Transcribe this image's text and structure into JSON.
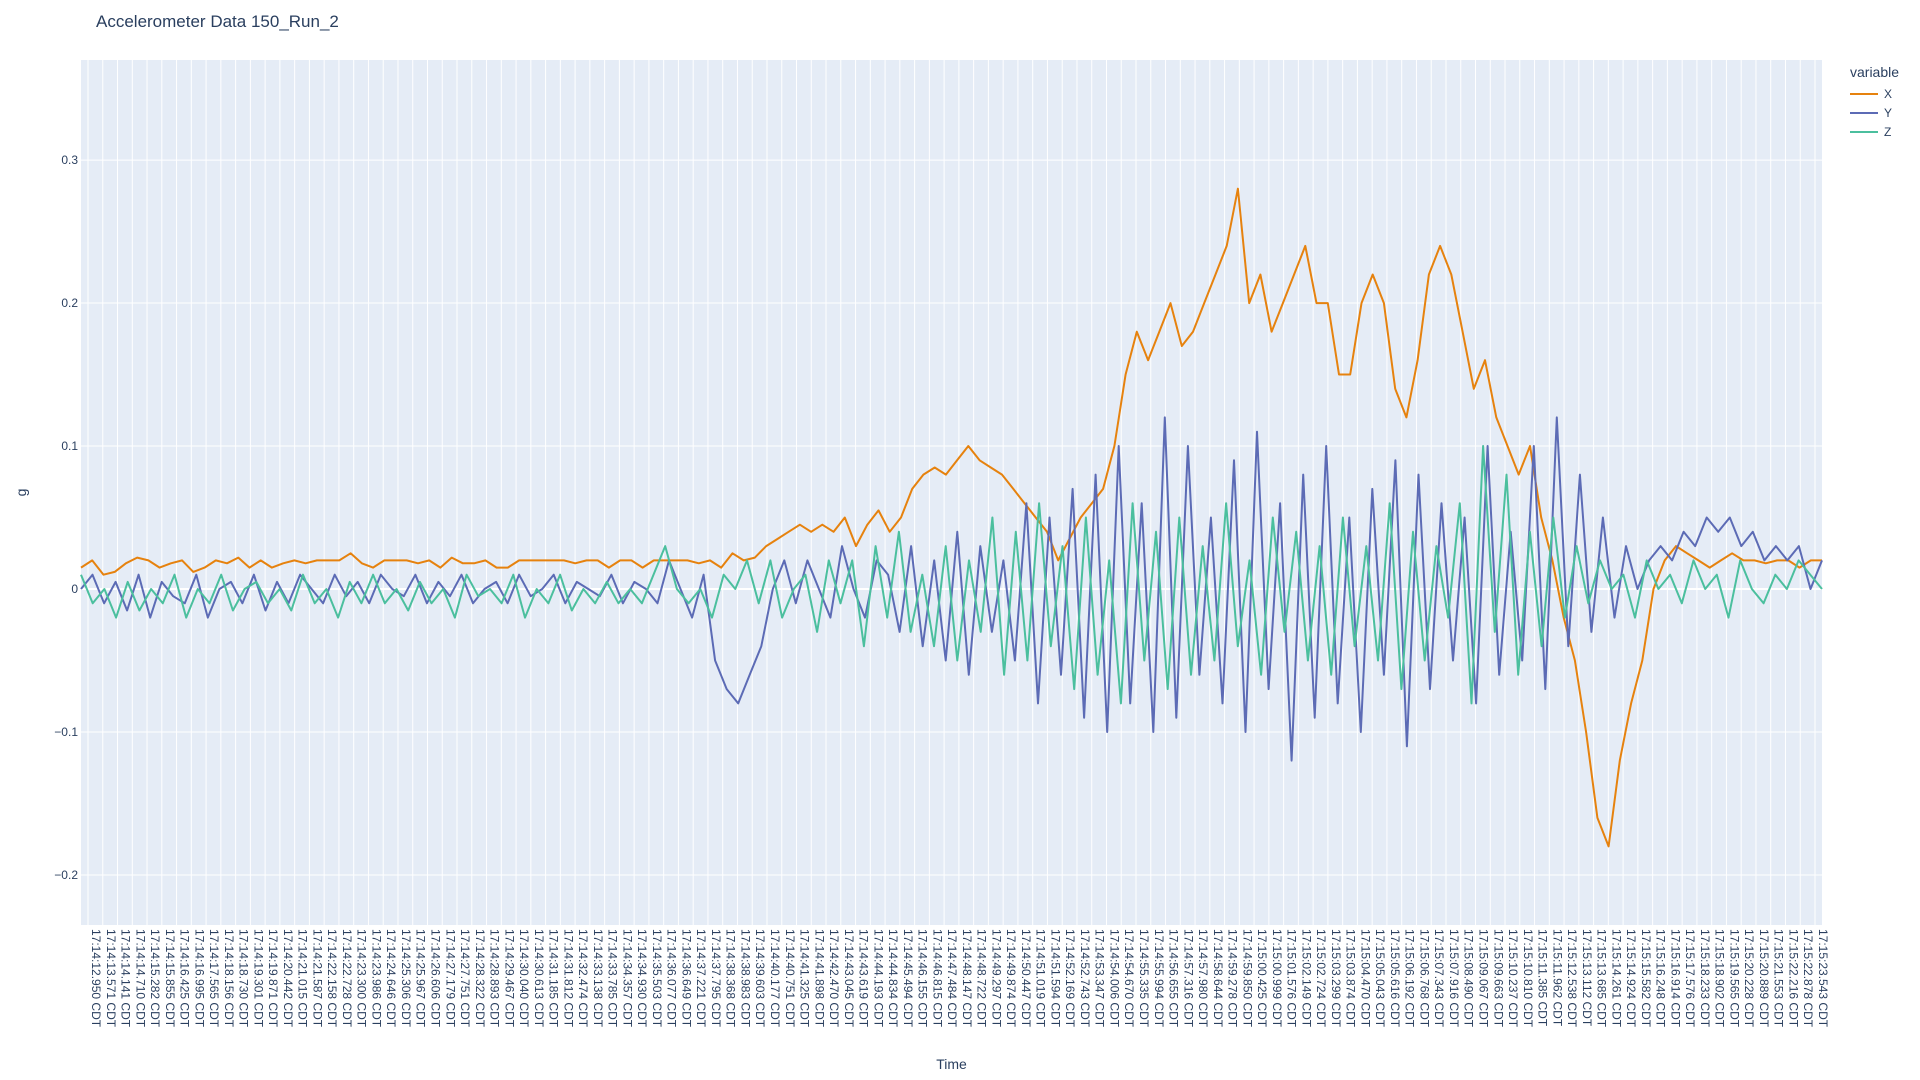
{
  "chart_data": {
    "type": "line",
    "title": "Accelerometer Data 150_Run_2",
    "xlabel": "Time",
    "ylabel": "g",
    "ylim": [
      -0.235,
      0.37
    ],
    "yticks": [
      -0.2,
      -0.1,
      0,
      0.1,
      0.2,
      0.3
    ],
    "ytick_labels": [
      "−0.2",
      "−0.1",
      "0",
      "0.1",
      "0.2",
      "0.3"
    ],
    "grid": true,
    "legend_title": "variable",
    "legend_position": "top-right",
    "x_tick_labels": [
      "17:14:12.950 CDT",
      "17:14:13.571 CDT",
      "17:14:14.141 CDT",
      "17:14:14.710 CDT",
      "17:14:15.282 CDT",
      "17:14:15.855 CDT",
      "17:14:16.425 CDT",
      "17:14:16.995 CDT",
      "17:14:17.565 CDT",
      "17:14:18.156 CDT",
      "17:14:18.730 CDT",
      "17:14:19.301 CDT",
      "17:14:19.871 CDT",
      "17:14:20.442 CDT",
      "17:14:21.015 CDT",
      "17:14:21.587 CDT",
      "17:14:22.158 CDT",
      "17:14:22.728 CDT",
      "17:14:23.300 CDT",
      "17:14:23.986 CDT",
      "17:14:24.646 CDT",
      "17:14:25.306 CDT",
      "17:14:25.967 CDT",
      "17:14:26.606 CDT",
      "17:14:27.179 CDT",
      "17:14:27.751 CDT",
      "17:14:28.322 CDT",
      "17:14:28.893 CDT",
      "17:14:29.467 CDT",
      "17:14:30.040 CDT",
      "17:14:30.613 CDT",
      "17:14:31.185 CDT",
      "17:14:31.812 CDT",
      "17:14:32.474 CDT",
      "17:14:33.138 CDT",
      "17:14:33.785 CDT",
      "17:14:34.357 CDT",
      "17:14:34.930 CDT",
      "17:14:35.503 CDT",
      "17:14:36.077 CDT",
      "17:14:36.649 CDT",
      "17:14:37.221 CDT",
      "17:14:37.795 CDT",
      "17:14:38.368 CDT",
      "17:14:38.983 CDT",
      "17:14:39.603 CDT",
      "17:14:40.177 CDT",
      "17:14:40.751 CDT",
      "17:14:41.325 CDT",
      "17:14:41.898 CDT",
      "17:14:42.470 CDT",
      "17:14:43.045 CDT",
      "17:14:43.619 CDT",
      "17:14:44.193 CDT",
      "17:14:44.834 CDT",
      "17:14:45.494 CDT",
      "17:14:46.155 CDT",
      "17:14:46.815 CDT",
      "17:14:47.484 CDT",
      "17:14:48.147 CDT",
      "17:14:48.722 CDT",
      "17:14:49.297 CDT",
      "17:14:49.874 CDT",
      "17:14:50.447 CDT",
      "17:14:51.019 CDT",
      "17:14:51.594 CDT",
      "17:14:52.169 CDT",
      "17:14:52.743 CDT",
      "17:14:53.347 CDT",
      "17:14:54.006 CDT",
      "17:14:54.670 CDT",
      "17:14:55.335 CDT",
      "17:14:55.994 CDT",
      "17:14:56.655 CDT",
      "17:14:57.316 CDT",
      "17:14:57.980 CDT",
      "17:14:58.644 CDT",
      "17:14:59.278 CDT",
      "17:14:59.850 CDT",
      "17:15:00.425 CDT",
      "17:15:00.999 CDT",
      "17:15:01.576 CDT",
      "17:15:02.149 CDT",
      "17:15:02.724 CDT",
      "17:15:03.299 CDT",
      "17:15:03.874 CDT",
      "17:15:04.470 CDT",
      "17:15:05.043 CDT",
      "17:15:05.616 CDT",
      "17:15:06.192 CDT",
      "17:15:06.768 CDT",
      "17:15:07.343 CDT",
      "17:15:07.916 CDT",
      "17:15:08.490 CDT",
      "17:15:09.067 CDT",
      "17:15:09.663 CDT",
      "17:15:10.237 CDT",
      "17:15:10.810 CDT",
      "17:15:11.385 CDT",
      "17:15:11.962 CDT",
      "17:15:12.538 CDT",
      "17:15:13.112 CDT",
      "17:15:13.685 CDT",
      "17:15:14.261 CDT",
      "17:15:14.924 CDT",
      "17:15:15.582 CDT",
      "17:15:16.248 CDT",
      "17:15:16.914 CDT",
      "17:15:17.576 CDT",
      "17:15:18.233 CDT",
      "17:15:18.902 CDT",
      "17:15:19.565 CDT",
      "17:15:20.228 CDT",
      "17:15:20.889 CDT",
      "17:15:21.553 CDT",
      "17:15:22.216 CDT",
      "17:15:22.878 CDT",
      "17:15:23.543 CDT"
    ],
    "series": [
      {
        "name": "X",
        "color": "#e6820e",
        "values": [
          0.015,
          0.02,
          0.01,
          0.012,
          0.018,
          0.022,
          0.02,
          0.015,
          0.018,
          0.02,
          0.012,
          0.015,
          0.02,
          0.018,
          0.022,
          0.015,
          0.02,
          0.015,
          0.018,
          0.02,
          0.018,
          0.02,
          0.02,
          0.02,
          0.025,
          0.018,
          0.015,
          0.02,
          0.02,
          0.02,
          0.018,
          0.02,
          0.015,
          0.022,
          0.018,
          0.018,
          0.02,
          0.015,
          0.015,
          0.02,
          0.02,
          0.02,
          0.02,
          0.02,
          0.018,
          0.02,
          0.02,
          0.015,
          0.02,
          0.02,
          0.015,
          0.02,
          0.02,
          0.02,
          0.02,
          0.018,
          0.02,
          0.015,
          0.025,
          0.02,
          0.022,
          0.03,
          0.035,
          0.04,
          0.045,
          0.04,
          0.045,
          0.04,
          0.05,
          0.03,
          0.045,
          0.055,
          0.04,
          0.05,
          0.07,
          0.08,
          0.085,
          0.08,
          0.09,
          0.1,
          0.09,
          0.085,
          0.08,
          0.07,
          0.06,
          0.05,
          0.04,
          0.02,
          0.035,
          0.05,
          0.06,
          0.07,
          0.1,
          0.15,
          0.18,
          0.16,
          0.18,
          0.2,
          0.17,
          0.18,
          0.2,
          0.22,
          0.24,
          0.28,
          0.2,
          0.22,
          0.18,
          0.2,
          0.22,
          0.24,
          0.2,
          0.2,
          0.15,
          0.15,
          0.2,
          0.22,
          0.2,
          0.14,
          0.12,
          0.16,
          0.22,
          0.24,
          0.22,
          0.18,
          0.14,
          0.16,
          0.12,
          0.1,
          0.08,
          0.1,
          0.05,
          0.02,
          -0.02,
          -0.05,
          -0.1,
          -0.16,
          -0.18,
          -0.12,
          -0.08,
          -0.05,
          0.0,
          0.02,
          0.03,
          0.025,
          0.02,
          0.015,
          0.02,
          0.025,
          0.02,
          0.02,
          0.018,
          0.02,
          0.02,
          0.015,
          0.02,
          0.02
        ]
      },
      {
        "name": "Y",
        "color": "#5c6bb5",
        "values": [
          0.0,
          0.01,
          -0.01,
          0.005,
          -0.015,
          0.01,
          -0.02,
          0.005,
          -0.005,
          -0.01,
          0.01,
          -0.02,
          0.0,
          0.005,
          -0.01,
          0.01,
          -0.015,
          0.005,
          -0.01,
          0.01,
          0.0,
          -0.01,
          0.01,
          -0.005,
          0.005,
          -0.01,
          0.01,
          0.0,
          -0.005,
          0.01,
          -0.01,
          0.005,
          -0.005,
          0.01,
          -0.01,
          0.0,
          0.005,
          -0.01,
          0.01,
          -0.005,
          0.0,
          0.01,
          -0.01,
          0.005,
          0.0,
          -0.005,
          0.01,
          -0.01,
          0.005,
          0.0,
          -0.01,
          0.02,
          0.0,
          -0.02,
          0.01,
          -0.05,
          -0.07,
          -0.08,
          -0.06,
          -0.04,
          0.0,
          0.02,
          -0.01,
          0.02,
          0.0,
          -0.02,
          0.03,
          0.0,
          -0.02,
          0.02,
          0.01,
          -0.03,
          0.03,
          -0.04,
          0.02,
          -0.05,
          0.04,
          -0.06,
          0.03,
          -0.03,
          0.02,
          -0.05,
          0.06,
          -0.08,
          0.05,
          -0.06,
          0.07,
          -0.09,
          0.08,
          -0.1,
          0.1,
          -0.08,
          0.06,
          -0.1,
          0.12,
          -0.09,
          0.1,
          -0.06,
          0.05,
          -0.08,
          0.09,
          -0.1,
          0.11,
          -0.07,
          0.06,
          -0.12,
          0.08,
          -0.09,
          0.1,
          -0.08,
          0.05,
          -0.1,
          0.07,
          -0.06,
          0.09,
          -0.11,
          0.08,
          -0.07,
          0.06,
          -0.05,
          0.05,
          -0.08,
          0.1,
          -0.06,
          0.04,
          -0.05,
          0.1,
          -0.07,
          0.12,
          -0.04,
          0.08,
          -0.03,
          0.05,
          -0.02,
          0.03,
          0.0,
          0.02,
          0.03,
          0.02,
          0.04,
          0.03,
          0.05,
          0.04,
          0.05,
          0.03,
          0.04,
          0.02,
          0.03,
          0.02,
          0.03,
          0.0,
          0.02
        ]
      },
      {
        "name": "Z",
        "color": "#4bbf9e",
        "values": [
          0.01,
          -0.01,
          0.0,
          -0.02,
          0.005,
          -0.015,
          0.0,
          -0.01,
          0.01,
          -0.02,
          0.0,
          -0.01,
          0.01,
          -0.015,
          0.0,
          0.005,
          -0.01,
          0.0,
          -0.015,
          0.01,
          -0.01,
          0.0,
          -0.02,
          0.005,
          -0.01,
          0.01,
          -0.01,
          0.0,
          -0.015,
          0.005,
          -0.01,
          0.0,
          -0.02,
          0.01,
          -0.005,
          0.0,
          -0.01,
          0.01,
          -0.02,
          0.0,
          -0.01,
          0.01,
          -0.015,
          0.0,
          -0.01,
          0.005,
          -0.01,
          0.0,
          -0.01,
          0.01,
          0.03,
          0.0,
          -0.01,
          0.0,
          -0.02,
          0.01,
          0.0,
          0.02,
          -0.01,
          0.02,
          -0.02,
          0.0,
          0.01,
          -0.03,
          0.02,
          -0.01,
          0.02,
          -0.04,
          0.03,
          -0.02,
          0.04,
          -0.03,
          0.01,
          -0.04,
          0.03,
          -0.05,
          0.02,
          -0.03,
          0.05,
          -0.06,
          0.04,
          -0.05,
          0.06,
          -0.04,
          0.03,
          -0.07,
          0.05,
          -0.06,
          0.02,
          -0.08,
          0.06,
          -0.05,
          0.04,
          -0.07,
          0.05,
          -0.06,
          0.03,
          -0.05,
          0.06,
          -0.04,
          0.02,
          -0.06,
          0.05,
          -0.03,
          0.04,
          -0.05,
          0.03,
          -0.06,
          0.05,
          -0.04,
          0.03,
          -0.05,
          0.06,
          -0.07,
          0.04,
          -0.05,
          0.03,
          -0.02,
          0.06,
          -0.08,
          0.1,
          -0.03,
          0.08,
          -0.06,
          0.04,
          -0.04,
          0.05,
          -0.02,
          0.03,
          -0.01,
          0.02,
          0.0,
          0.01,
          -0.02,
          0.02,
          0.0,
          0.01,
          -0.01,
          0.02,
          0.0,
          0.01,
          -0.02,
          0.02,
          0.0,
          -0.01,
          0.01,
          0.0,
          0.02,
          0.01,
          0.0
        ]
      }
    ]
  }
}
